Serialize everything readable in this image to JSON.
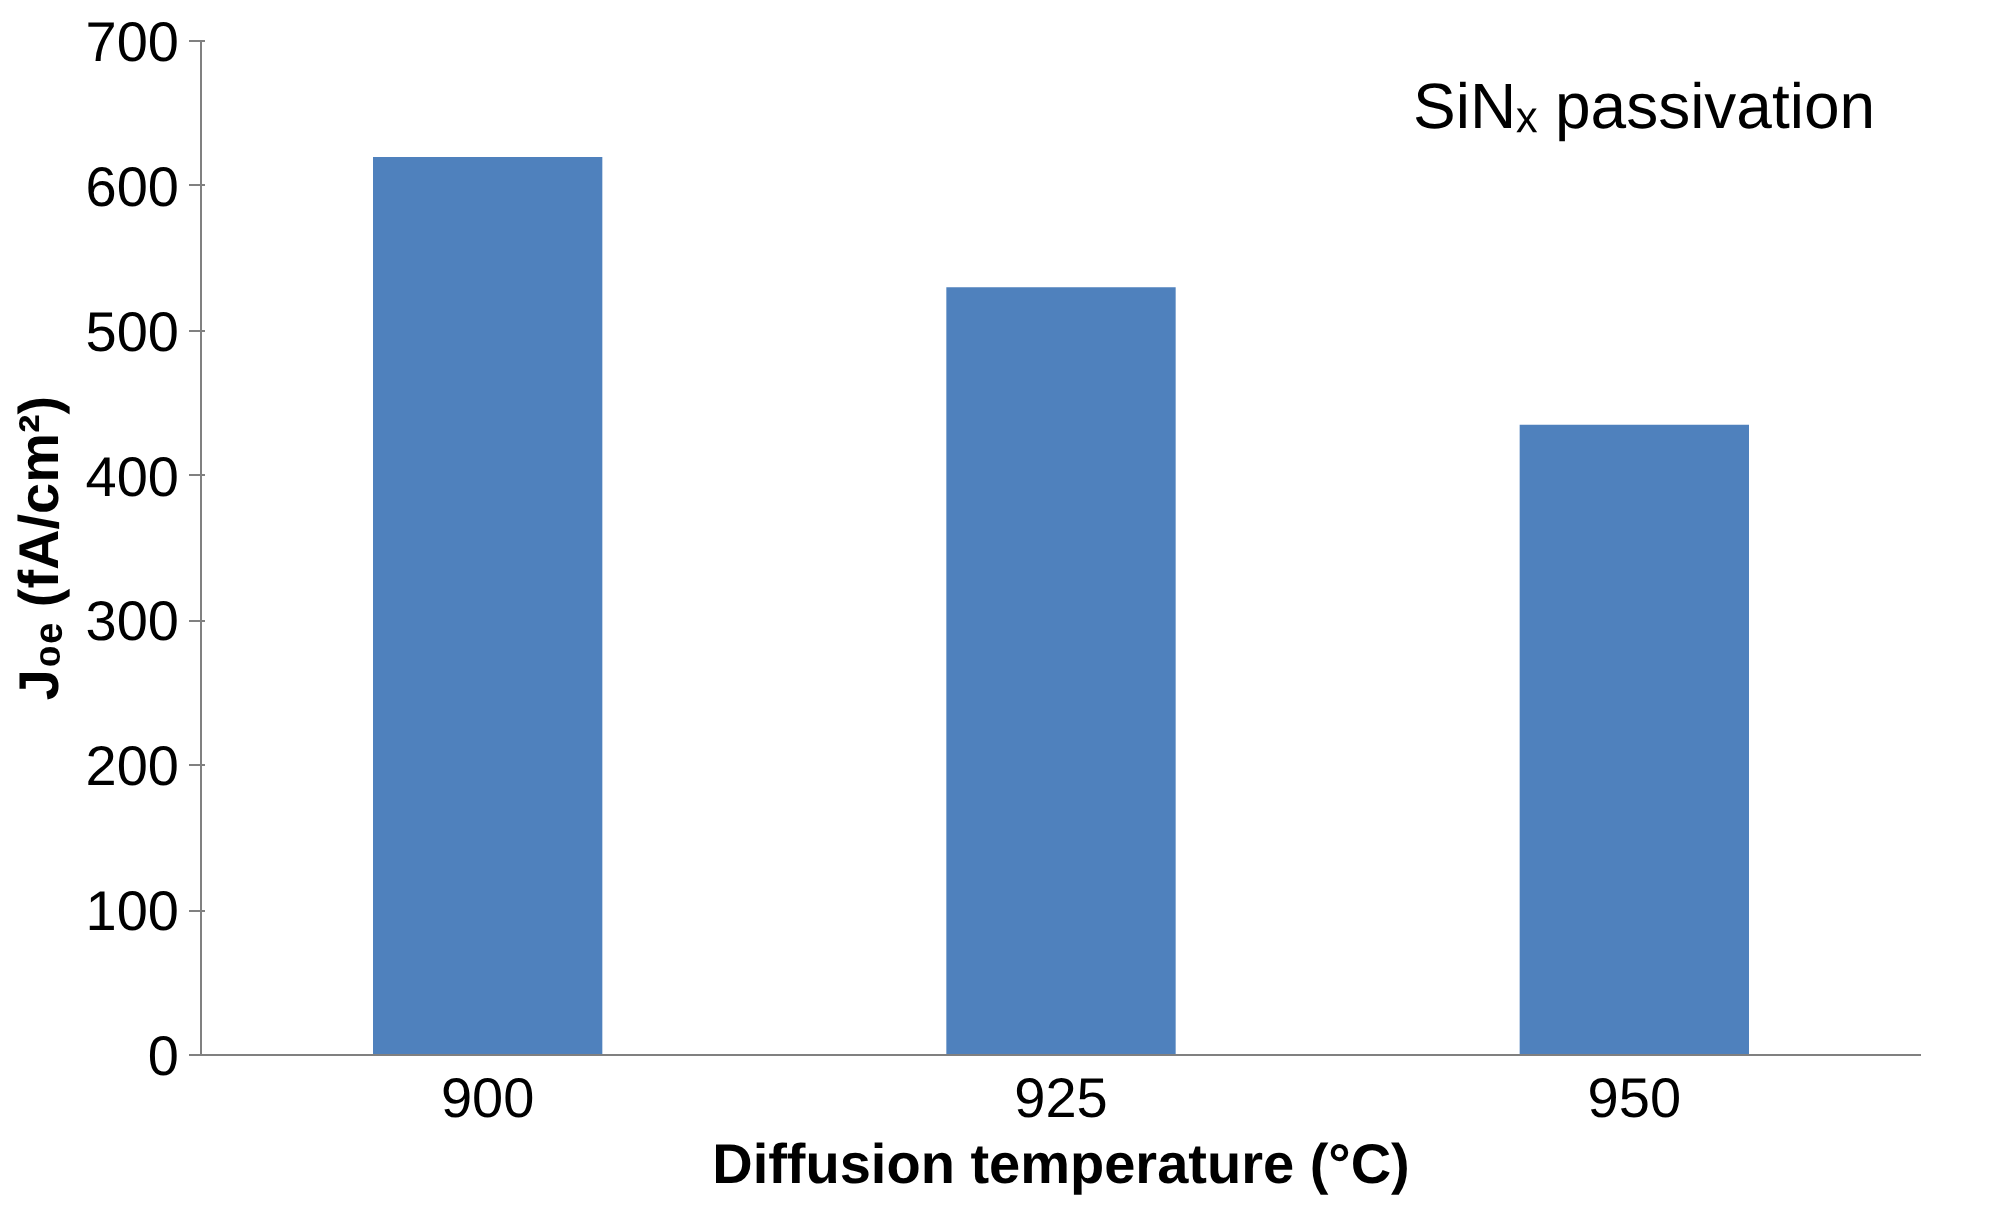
{
  "chart_data": {
    "type": "bar",
    "categories": [
      "900",
      "925",
      "950"
    ],
    "values": [
      620,
      530,
      435
    ],
    "color": "#4f81bd",
    "xlabel": "Diffusion temperature (°C)",
    "ylabel": "J₀ₑ (fA/cm²)",
    "annotations": [
      "SiNₓ passivation"
    ],
    "ylim": [
      0,
      700
    ],
    "yticks": [
      0,
      100,
      200,
      300,
      400,
      500,
      600,
      700
    ],
    "grid": false
  }
}
